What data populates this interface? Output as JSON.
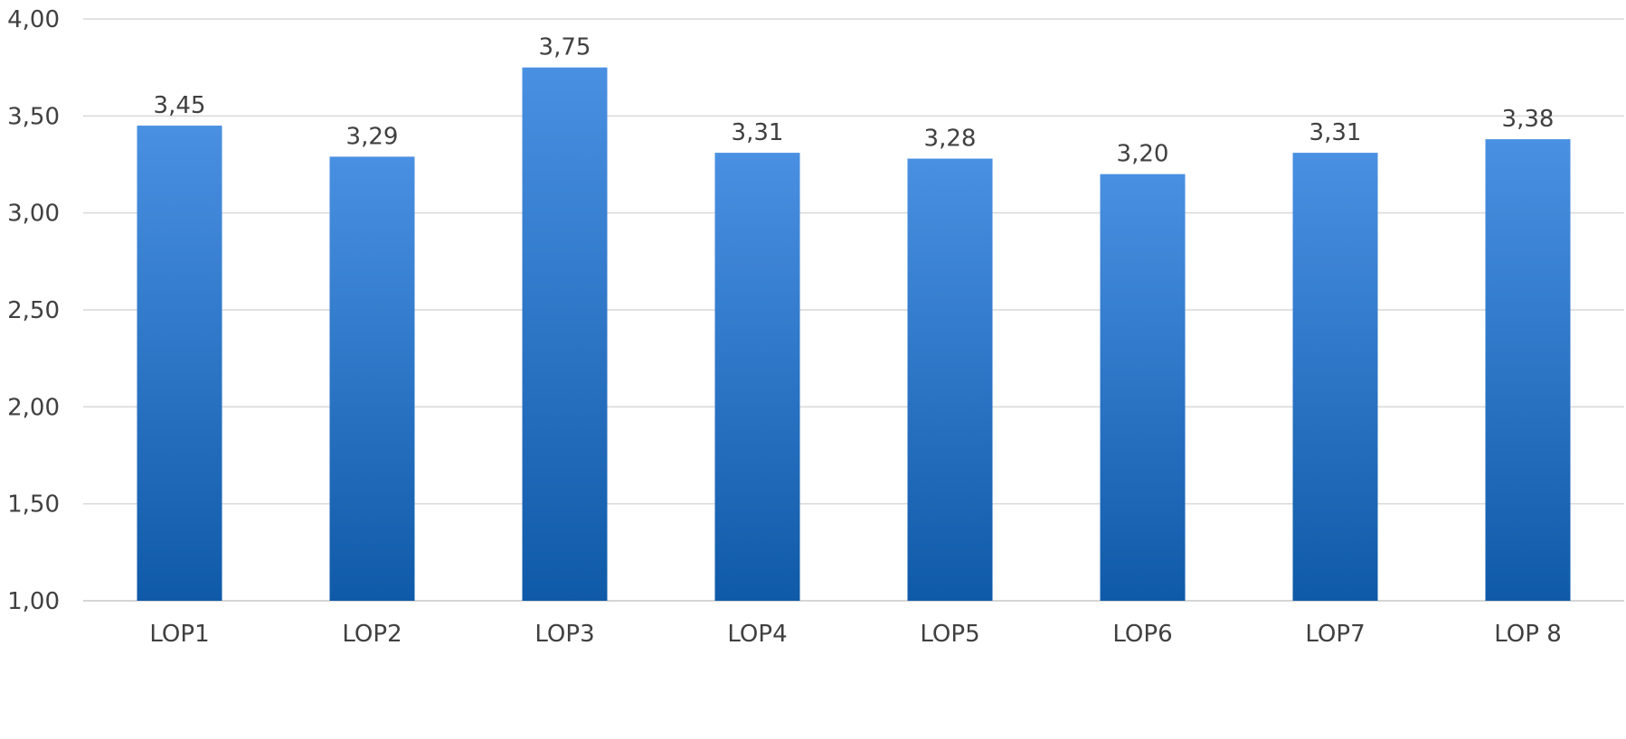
{
  "chart_data": {
    "type": "bar",
    "categories": [
      "LOP1",
      "LOP2",
      "LOP3",
      "LOP4",
      "LOP5",
      "LOP6",
      "LOP7",
      "LOP 8"
    ],
    "values": [
      3.45,
      3.29,
      3.75,
      3.31,
      3.28,
      3.2,
      3.31,
      3.38
    ],
    "data_labels": [
      "3,45",
      "3,29",
      "3,75",
      "3,31",
      "3,28",
      "3,20",
      "3,31",
      "3,38"
    ],
    "title": "",
    "xlabel": "",
    "ylabel": "",
    "ylim": [
      1.0,
      4.0
    ],
    "yticks": [
      1.0,
      1.5,
      2.0,
      2.5,
      3.0,
      3.5,
      4.0
    ],
    "ytick_labels": [
      "1,00",
      "1,50",
      "2,00",
      "2,50",
      "3,00",
      "3,50",
      "4,00"
    ],
    "grid": true,
    "legend": "none",
    "colors": {
      "bar_top": "#4a90e2",
      "bar_bottom": "#0f5aa8",
      "grid": "#d9d9d9",
      "text": "#404040"
    }
  }
}
